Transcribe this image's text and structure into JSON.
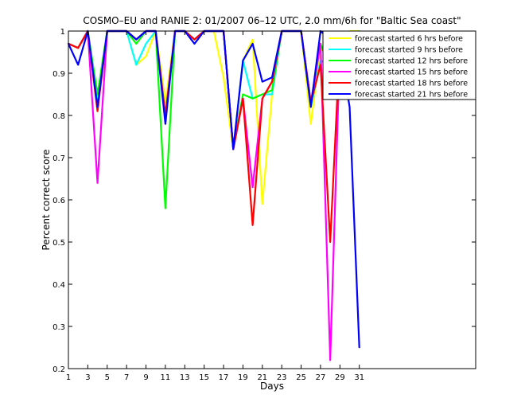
{
  "chart_data": {
    "type": "line",
    "title": "COSMO–EU and RANIE 2: 01/2007 06–12 UTC, 2.0 mm/6h for \"Baltic Sea coast\"",
    "xlabel": "Days",
    "ylabel": "Percent correct score",
    "xlim": [
      1,
      43
    ],
    "ylim": [
      0.2,
      1.0
    ],
    "xticks": [
      1,
      3,
      5,
      7,
      9,
      11,
      13,
      15,
      17,
      19,
      21,
      23,
      25,
      27,
      29,
      31
    ],
    "yticks": [
      0.2,
      0.3,
      0.4,
      0.5,
      0.6,
      0.7,
      0.8,
      0.9,
      1
    ],
    "ytick_labels": [
      "0.2",
      "0.3",
      "0.4",
      "0.5",
      "0.6",
      "0.7",
      "0.8",
      "0.9",
      "1"
    ],
    "grid": false,
    "legend_position": "top-right",
    "x": [
      1,
      2,
      3,
      4,
      5,
      6,
      7,
      8,
      9,
      10,
      11,
      12,
      13,
      14,
      15,
      16,
      17,
      18,
      19,
      20,
      21,
      22,
      23,
      24,
      25,
      26,
      27,
      28,
      29,
      30,
      31
    ],
    "series": [
      {
        "name": "forecast started 6 hrs before",
        "color": "#ffff00",
        "values": [
          0.97,
          0.96,
          1.0,
          0.82,
          1.0,
          1.0,
          1.0,
          0.92,
          0.94,
          1.0,
          0.83,
          1.0,
          1.0,
          0.98,
          1.0,
          1.0,
          0.89,
          0.72,
          0.93,
          0.98,
          0.59,
          0.85,
          1.0,
          1.0,
          1.0,
          0.78,
          0.96,
          0.93,
          0.97,
          1.0,
          1.0
        ]
      },
      {
        "name": "forecast started 9 hrs before",
        "color": "#00ffff",
        "values": [
          0.97,
          0.96,
          1.0,
          0.84,
          1.0,
          1.0,
          1.0,
          0.92,
          0.97,
          1.0,
          0.8,
          1.0,
          1.0,
          0.98,
          1.0,
          1.0,
          1.0,
          0.72,
          0.93,
          0.84,
          0.85,
          0.85,
          1.0,
          1.0,
          1.0,
          0.82,
          0.93,
          0.92,
          0.96,
          0.94,
          0.89
        ]
      },
      {
        "name": "forecast started 12 hrs before",
        "color": "#00ff00",
        "values": [
          0.97,
          0.96,
          1.0,
          0.85,
          1.0,
          1.0,
          1.0,
          0.97,
          1.0,
          1.0,
          0.58,
          1.0,
          1.0,
          0.98,
          1.0,
          1.0,
          1.0,
          0.72,
          0.85,
          0.84,
          0.85,
          0.86,
          1.0,
          1.0,
          1.0,
          0.83,
          0.97,
          0.91,
          0.95,
          0.99,
          1.0
        ]
      },
      {
        "name": "forecast started 15 hrs before",
        "color": "#ff00ff",
        "values": [
          0.97,
          0.96,
          1.0,
          0.64,
          1.0,
          1.0,
          1.0,
          0.98,
          1.0,
          1.0,
          0.79,
          1.0,
          1.0,
          0.98,
          1.0,
          1.0,
          1.0,
          0.72,
          0.84,
          0.63,
          0.84,
          0.88,
          1.0,
          1.0,
          1.0,
          0.83,
          0.97,
          0.22,
          0.96,
          0.92,
          0.99
        ]
      },
      {
        "name": "forecast started 18 hrs before",
        "color": "#ff0000",
        "values": [
          0.97,
          0.96,
          1.0,
          0.81,
          1.0,
          1.0,
          1.0,
          0.98,
          1.0,
          1.0,
          0.8,
          1.0,
          1.0,
          0.98,
          1.0,
          1.0,
          1.0,
          0.72,
          0.84,
          0.54,
          0.84,
          0.88,
          1.0,
          1.0,
          1.0,
          0.83,
          0.92,
          0.5,
          0.97,
          0.84,
          0.95
        ]
      },
      {
        "name": "forecast started 21 hrs before",
        "color": "#0000ff",
        "values": [
          0.97,
          0.92,
          1.0,
          0.82,
          1.0,
          1.0,
          1.0,
          0.98,
          1.0,
          1.0,
          0.78,
          1.0,
          1.0,
          0.97,
          1.0,
          1.0,
          1.0,
          0.72,
          0.93,
          0.97,
          0.88,
          0.89,
          1.0,
          1.0,
          1.0,
          0.82,
          1.0,
          0.98,
          0.96,
          0.82,
          0.25
        ]
      }
    ]
  }
}
